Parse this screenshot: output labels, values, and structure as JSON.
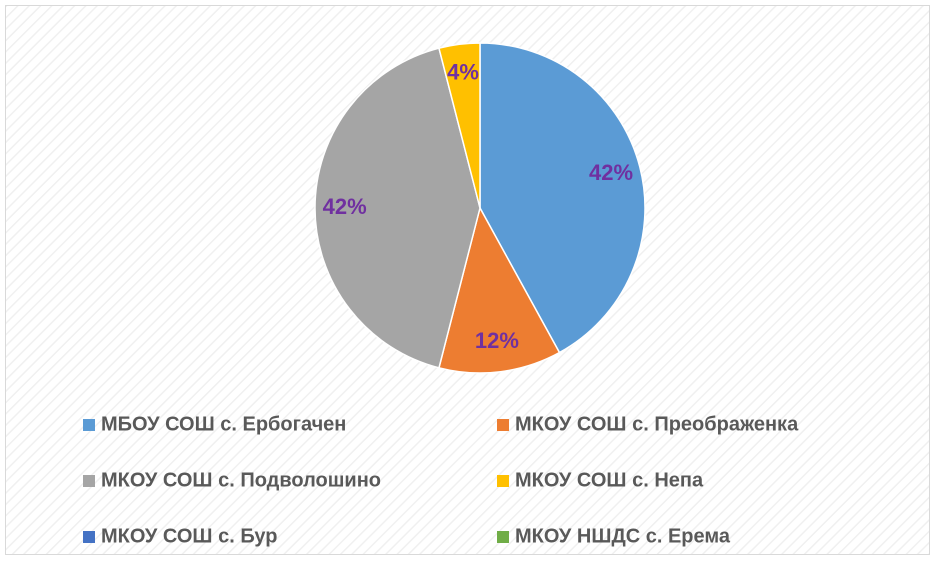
{
  "chart_data": {
    "type": "pie",
    "categories": [
      "МБОУ СОШ с. Ербогачен",
      "МКОУ СОШ с. Преображенка",
      "МКОУ СОШ с. Подволошино",
      "МКОУ СОШ с. Непа",
      "МКОУ СОШ с. Бур",
      "МКОУ НШДС с. Ерема"
    ],
    "values": [
      42,
      12,
      42,
      4,
      0,
      0
    ],
    "value_labels": [
      "42%",
      "12%",
      "42%",
      "4%",
      null,
      null
    ],
    "colors": [
      "#5b9bd5",
      "#ed7d31",
      "#a5a5a5",
      "#ffc000",
      "#4472c4",
      "#70ad47"
    ],
    "legend": "bottom"
  }
}
